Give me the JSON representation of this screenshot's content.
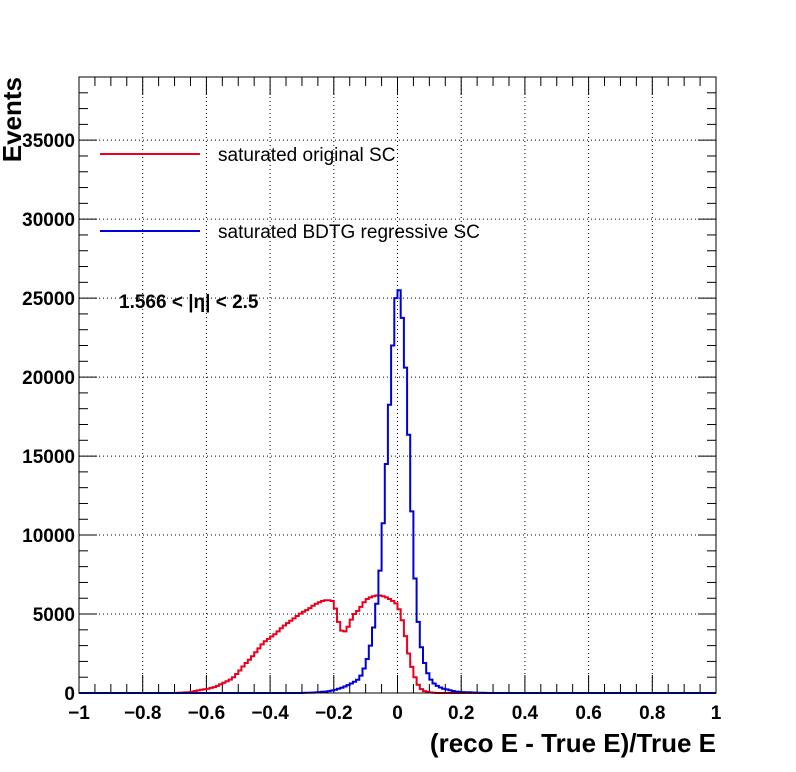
{
  "chart_data": {
    "type": "line",
    "style": "step-histogram",
    "xlabel": "(reco E - True E)/True E",
    "ylabel": "Events",
    "xlim": [
      -1,
      1
    ],
    "ylim": [
      0,
      39000
    ],
    "x_ticks": [
      "−1",
      "−0.8",
      "−0.6",
      "−0.4",
      "−0.2",
      "0",
      "0.2",
      "0.4",
      "0.6",
      "0.8",
      "1"
    ],
    "y_ticks": [
      "0",
      "5000",
      "10000",
      "15000",
      "20000",
      "25000",
      "30000",
      "35000"
    ],
    "grid": true,
    "legend_position": "top-left",
    "annotation": "1.566 < |η| < 2.5",
    "series": [
      {
        "name": "saturated original SC",
        "color": "#e8001c",
        "points": [
          [
            -1.0,
            0
          ],
          [
            -0.7,
            0
          ],
          [
            -0.65,
            50
          ],
          [
            -0.63,
            150
          ],
          [
            -0.6,
            250
          ],
          [
            -0.57,
            400
          ],
          [
            -0.55,
            600
          ],
          [
            -0.52,
            900
          ],
          [
            -0.5,
            1300
          ],
          [
            -0.48,
            1800
          ],
          [
            -0.46,
            2200
          ],
          [
            -0.44,
            2700
          ],
          [
            -0.42,
            3200
          ],
          [
            -0.4,
            3500
          ],
          [
            -0.38,
            3800
          ],
          [
            -0.36,
            4200
          ],
          [
            -0.34,
            4500
          ],
          [
            -0.32,
            4800
          ],
          [
            -0.3,
            5100
          ],
          [
            -0.28,
            5300
          ],
          [
            -0.26,
            5600
          ],
          [
            -0.24,
            5800
          ],
          [
            -0.22,
            5900
          ],
          [
            -0.2,
            5800
          ],
          [
            -0.19,
            4900
          ],
          [
            -0.18,
            4100
          ],
          [
            -0.17,
            3800
          ],
          [
            -0.16,
            4000
          ],
          [
            -0.15,
            4400
          ],
          [
            -0.14,
            4900
          ],
          [
            -0.12,
            5300
          ],
          [
            -0.1,
            5900
          ],
          [
            -0.08,
            6100
          ],
          [
            -0.06,
            6200
          ],
          [
            -0.04,
            6100
          ],
          [
            -0.02,
            5900
          ],
          [
            0.0,
            5600
          ],
          [
            0.01,
            5000
          ],
          [
            0.02,
            4200
          ],
          [
            0.03,
            3000
          ],
          [
            0.04,
            2000
          ],
          [
            0.05,
            1300
          ],
          [
            0.06,
            700
          ],
          [
            0.07,
            350
          ],
          [
            0.08,
            150
          ],
          [
            0.1,
            40
          ],
          [
            0.12,
            0
          ],
          [
            1.0,
            0
          ]
        ]
      },
      {
        "name": "saturated BDTG regressive SC",
        "color": "#0000d9",
        "points": [
          [
            -1.0,
            0
          ],
          [
            -0.3,
            0
          ],
          [
            -0.26,
            30
          ],
          [
            -0.22,
            100
          ],
          [
            -0.2,
            180
          ],
          [
            -0.18,
            300
          ],
          [
            -0.16,
            450
          ],
          [
            -0.14,
            650
          ],
          [
            -0.12,
            900
          ],
          [
            -0.11,
            1300
          ],
          [
            -0.1,
            1800
          ],
          [
            -0.09,
            2500
          ],
          [
            -0.08,
            3500
          ],
          [
            -0.07,
            4800
          ],
          [
            -0.06,
            6500
          ],
          [
            -0.05,
            9000
          ],
          [
            -0.04,
            12500
          ],
          [
            -0.03,
            16500
          ],
          [
            -0.02,
            20000
          ],
          [
            -0.01,
            24000
          ],
          [
            0.0,
            26000
          ],
          [
            0.01,
            25000
          ],
          [
            0.02,
            22500
          ],
          [
            0.03,
            18700
          ],
          [
            0.04,
            14000
          ],
          [
            0.05,
            9000
          ],
          [
            0.06,
            5500
          ],
          [
            0.07,
            3500
          ],
          [
            0.08,
            2300
          ],
          [
            0.09,
            1500
          ],
          [
            0.1,
            1000
          ],
          [
            0.11,
            700
          ],
          [
            0.12,
            500
          ],
          [
            0.14,
            300
          ],
          [
            0.16,
            200
          ],
          [
            0.18,
            100
          ],
          [
            0.2,
            60
          ],
          [
            0.24,
            30
          ],
          [
            0.28,
            0
          ],
          [
            1.0,
            0
          ]
        ]
      }
    ]
  }
}
